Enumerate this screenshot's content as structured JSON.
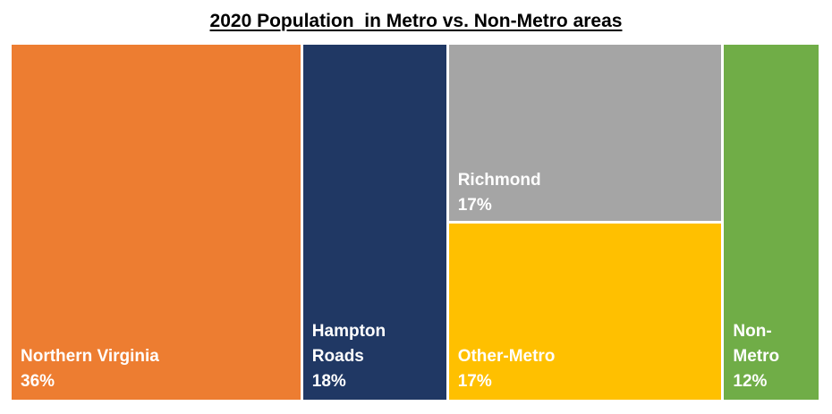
{
  "chart_data": {
    "type": "treemap",
    "title": "2020 Population  in Metro vs. Non-Metro areas",
    "items": [
      {
        "name": "Northern Virginia",
        "value": 36,
        "label": "36%",
        "color": "#ED7D31"
      },
      {
        "name": "Hampton\nRoads",
        "value": 18,
        "label": "18%",
        "color": "#203864"
      },
      {
        "name": "Richmond",
        "value": 17,
        "label": "17%",
        "color": "#A5A5A5"
      },
      {
        "name": "Other-Metro",
        "value": 17,
        "label": "17%",
        "color": "#FFC000"
      },
      {
        "name": "Non-\nMetro",
        "value": 12,
        "label": "12%",
        "color": "#70AD47"
      }
    ]
  }
}
